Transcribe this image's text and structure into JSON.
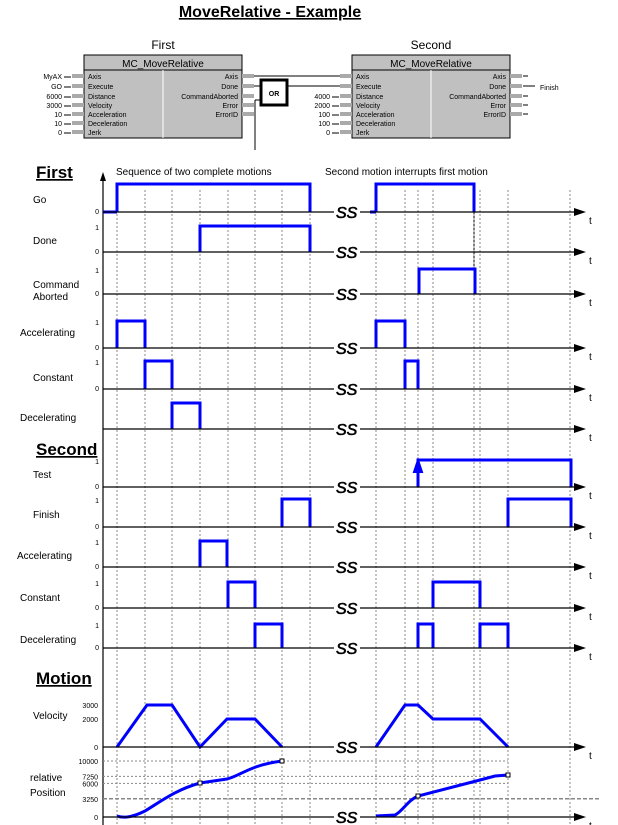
{
  "title": "MoveRelative - Example",
  "blocks": [
    {
      "caption": "First",
      "name": "MC_MoveRelative",
      "inputs": [
        {
          "value": "MyAX",
          "pin": "Axis"
        },
        {
          "value": "GO",
          "pin": "Execute"
        },
        {
          "value": "6000",
          "pin": "Distance"
        },
        {
          "value": "3000",
          "pin": "Velocity"
        },
        {
          "value": "10",
          "pin": "Acceleration"
        },
        {
          "value": "10",
          "pin": "Deceleration"
        },
        {
          "value": "0",
          "pin": "Jerk"
        }
      ],
      "outputs": [
        "Axis",
        "Done",
        "CommandAborted",
        "Error",
        "ErrorID"
      ]
    },
    {
      "caption": "Second",
      "name": "MC_MoveRelative",
      "inputs": [
        {
          "value": "",
          "pin": "Axis"
        },
        {
          "value": "",
          "pin": "Execute"
        },
        {
          "value": "4000",
          "pin": "Distance"
        },
        {
          "value": "2000",
          "pin": "Velocity"
        },
        {
          "value": "100",
          "pin": "Acceleration"
        },
        {
          "value": "100",
          "pin": "Deceleration"
        },
        {
          "value": "0",
          "pin": "Jerk"
        }
      ],
      "outputs": [
        "Axis",
        "Done",
        "CommandAborted",
        "Error",
        "ErrorID"
      ],
      "done_output_label": "Finish"
    }
  ],
  "or_gate": "OR",
  "annotations": {
    "left": "Sequence of two complete motions",
    "right": "Second motion interrupts first motion"
  },
  "sections": {
    "first": "First",
    "second": "Second",
    "motion": "Motion"
  },
  "rows": [
    {
      "label": [
        "Go"
      ],
      "ticks": [
        "",
        "0"
      ]
    },
    {
      "label": [
        "Done"
      ],
      "ticks": [
        "1",
        "0"
      ]
    },
    {
      "label": [
        "Command",
        "Aborted"
      ],
      "ticks": [
        "1",
        "0"
      ]
    },
    {
      "label": [
        "Accelerating"
      ],
      "ticks": [
        "1",
        "0"
      ]
    },
    {
      "label": [
        "Constant"
      ],
      "ticks": [
        "1",
        "0"
      ]
    },
    {
      "label": [
        "Decelerating"
      ],
      "ticks": [
        "",
        ""
      ]
    },
    {
      "label": [
        "Test"
      ],
      "ticks": [
        "1",
        "0"
      ]
    },
    {
      "label": [
        "Finish"
      ],
      "ticks": [
        "1",
        "0"
      ]
    },
    {
      "label": [
        "Accelerating"
      ],
      "ticks": [
        "1",
        "0"
      ]
    },
    {
      "label": [
        "Constant"
      ],
      "ticks": [
        "1",
        "0"
      ]
    },
    {
      "label": [
        "Decelerating"
      ],
      "ticks": [
        "1",
        "0"
      ]
    }
  ],
  "velocity": {
    "label": [
      "Velocity"
    ],
    "ticks": [
      "3000",
      "2000",
      "0"
    ]
  },
  "position": {
    "label": [
      "relative",
      "Position"
    ],
    "ticks": [
      "10000",
      "7250",
      "6000",
      "3250",
      "0"
    ]
  },
  "time_axis_label": "t",
  "colors": {
    "signal": "#0000ff",
    "block_fill": "#c0c0c0"
  }
}
